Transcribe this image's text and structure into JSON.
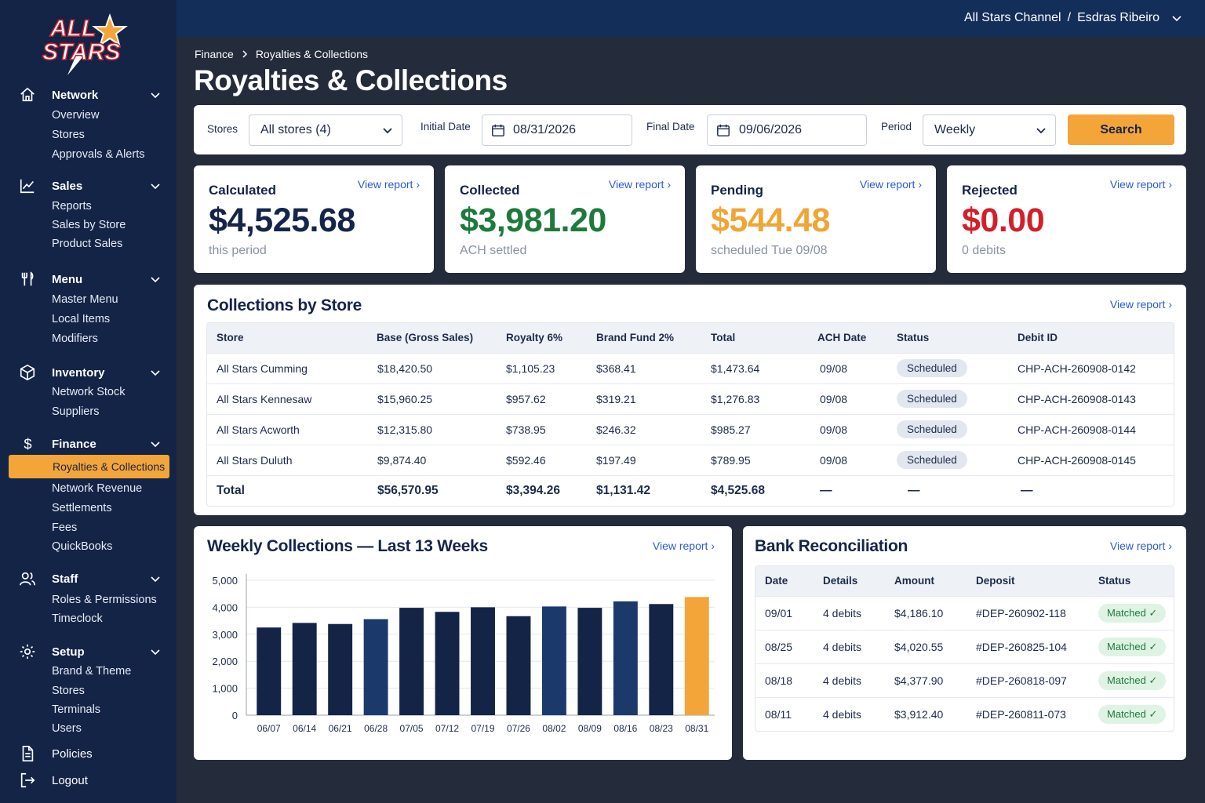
{
  "brand": {
    "logo_text_top": "ALL",
    "logo_text_bottom": "STARS"
  },
  "colors": {
    "sidebar": "#142447",
    "accent": "#f3a53a",
    "navy": "#142447",
    "mid_blue": "#1b3a6b",
    "green": "#1e7a3c",
    "red": "#d31f2a",
    "orange": "#f0a534",
    "link": "#2a5bd7"
  },
  "header": {
    "account": "All Stars Channel",
    "separator": "/",
    "user": "Esdras Ribeiro"
  },
  "breadcrumb": {
    "parent": "Finance",
    "current": "Royalties & Collections"
  },
  "page_title": "Royalties & Collections",
  "sidebar": {
    "network": {
      "label": "Network",
      "icon": "home-icon",
      "items": [
        "Overview",
        "Stores",
        "Approvals & Alerts"
      ]
    },
    "sales": {
      "label": "Sales",
      "icon": "line-chart-icon",
      "items": [
        "Reports",
        "Sales by Store",
        "Product Sales"
      ]
    },
    "menu": {
      "label": "Menu",
      "icon": "utensils-icon",
      "items": [
        "Master Menu",
        "Local Items",
        "Modifiers"
      ]
    },
    "inventory": {
      "label": "Inventory",
      "icon": "box-icon",
      "items": [
        "Network Stock",
        "Suppliers"
      ]
    },
    "finance": {
      "label": "Finance",
      "icon": "dollar-icon",
      "items": [
        "Royalties & Collections",
        "Network Revenue",
        "Settlements",
        "Fees",
        "QuickBooks"
      ]
    },
    "staff": {
      "label": "Staff",
      "icon": "users-icon",
      "items": [
        "Roles & Permissions",
        "Timeclock"
      ]
    },
    "setup": {
      "label": "Setup",
      "icon": "gear-icon",
      "items": [
        "Brand & Theme",
        "Stores",
        "Terminals",
        "Users"
      ]
    },
    "policies": {
      "label": "Policies",
      "icon": "document-icon"
    },
    "logout": {
      "label": "Logout",
      "icon": "logout-icon"
    }
  },
  "filters": {
    "stores_label": "Stores",
    "stores_value": "All stores (4)",
    "initial_label": "Initial Date",
    "initial_value": "08/31/2026",
    "final_label": "Final Date",
    "final_value": "09/06/2026",
    "period_label": "Period",
    "period_value": "Weekly",
    "search_label": "Search"
  },
  "kpis": [
    {
      "label": "Calculated",
      "value": "$4,525.68",
      "sub": "this period",
      "link": "View report",
      "color": "#14254a"
    },
    {
      "label": "Collected",
      "value": "$3,981.20",
      "sub": "ACH settled",
      "link": "View report",
      "color": "#1e7a3c"
    },
    {
      "label": "Pending",
      "value": "$544.48",
      "sub": "scheduled Tue 09/08",
      "link": "View report",
      "color": "#f0a534"
    },
    {
      "label": "Rejected",
      "value": "$0.00",
      "sub": "0 debits",
      "link": "View report",
      "color": "#d31f2a"
    }
  ],
  "collections": {
    "title": "Collections by Store",
    "link": "View report",
    "headers": [
      "Store",
      "Base (Gross Sales)",
      "Royalty 6%",
      "Brand Fund 2%",
      "Total",
      "ACH Date",
      "Status",
      "Debit ID"
    ],
    "rows": [
      [
        "All Stars Cumming",
        "$18,420.50",
        "$1,105.23",
        "$368.41",
        "$1,473.64",
        "09/08",
        "Scheduled",
        "CHP-ACH-260908-0142"
      ],
      [
        "All Stars Kennesaw",
        "$15,960.25",
        "$957.62",
        "$319.21",
        "$1,276.83",
        "09/08",
        "Scheduled",
        "CHP-ACH-260908-0143"
      ],
      [
        "All Stars Acworth",
        "$12,315.80",
        "$738.95",
        "$246.32",
        "$985.27",
        "09/08",
        "Scheduled",
        "CHP-ACH-260908-0144"
      ],
      [
        "All Stars Duluth",
        "$9,874.40",
        "$592.46",
        "$197.49",
        "$789.95",
        "09/08",
        "Scheduled",
        "CHP-ACH-260908-0145"
      ]
    ],
    "total": [
      "Total",
      "$56,570.95",
      "$3,394.26",
      "$1,131.42",
      "$4,525.68",
      "—",
      "—",
      "—"
    ]
  },
  "weekly": {
    "title": "Weekly Collections — Last 13 Weeks",
    "link": "View report"
  },
  "chart_data": {
    "type": "bar",
    "categories": [
      "06/07",
      "06/14",
      "06/21",
      "06/28",
      "07/05",
      "07/12",
      "07/19",
      "07/26",
      "08/02",
      "08/09",
      "08/16",
      "08/23",
      "08/31"
    ],
    "values": [
      3250,
      3420,
      3380,
      3560,
      3980,
      3830,
      4000,
      3670,
      4030,
      3980,
      4220,
      4120,
      4380
    ],
    "ylim": [
      0,
      5000
    ],
    "yticks": [
      "0",
      "1,000",
      "2,000",
      "3,000",
      "4,000",
      "5,000"
    ],
    "bar_colors": [
      "#142447",
      "#142447",
      "#142447",
      "#1b3a6b",
      "#142447",
      "#142447",
      "#142447",
      "#142447",
      "#1b3a6b",
      "#142447",
      "#1b3a6b",
      "#142447",
      "#f3a53a"
    ],
    "grid": true,
    "title": "Weekly Collections — Last 13 Weeks",
    "xlabel": "",
    "ylabel": ""
  },
  "bank": {
    "title": "Bank Reconciliation",
    "link": "View report",
    "headers": [
      "Date",
      "Details",
      "Amount",
      "Deposit",
      "Status"
    ],
    "rows": [
      [
        "09/01",
        "4 debits",
        "$4,186.10",
        "#DEP-260902-118",
        "Matched"
      ],
      [
        "08/25",
        "4 debits",
        "$4,020.55",
        "#DEP-260825-104",
        "Matched"
      ],
      [
        "08/18",
        "4 debits",
        "$4,377.90",
        "#DEP-260818-097",
        "Matched"
      ],
      [
        "08/11",
        "4 debits",
        "$3,912.40",
        "#DEP-260811-073",
        "Matched"
      ]
    ]
  }
}
